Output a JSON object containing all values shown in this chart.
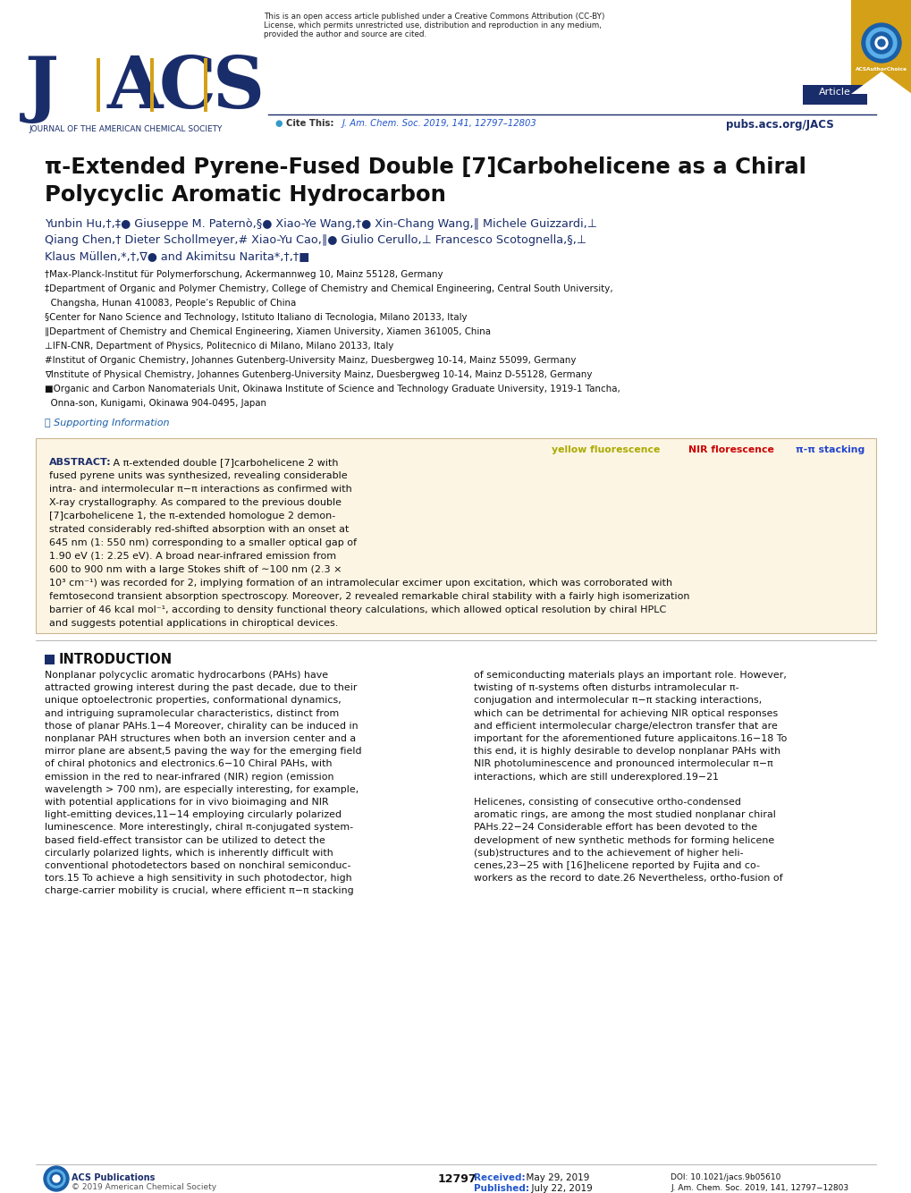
{
  "page_bg": "#ffffff",
  "navy": "#1a2d6b",
  "gold": "#d4a017",
  "blue_link": "#2255cc",
  "dark_text": "#111111",
  "gray_text": "#444444",
  "abstract_bg": "#fdf5e4",
  "abstract_border": "#c8b890",
  "red_label": "#cc0000",
  "yellow_label": "#aaaa00",
  "blue_label": "#2244cc",
  "green_dot": "#88bb00",
  "teal_dot": "#22aaaa",
  "header_line1": "This is an open access article published under a Creative Commons Attribution (CC-BY)",
  "header_line2": "License, which permits unrestricted use, distribution and reproduction in any medium,",
  "header_line3": "provided the author and source are cited.",
  "cite_label": "Cite This:",
  "cite_ref": "J. Am. Chem. Soc. 2019, 141, 12797–12803",
  "pubs_url": "pubs.acs.org/JACS",
  "article_badge": "Article",
  "jacs_letters": [
    "J",
    "A",
    "C",
    "S"
  ],
  "jacs_subtitle": "JOURNAL OF THE AMERICAN CHEMICAL SOCIETY",
  "title1": "π-Extended Pyrene-Fused Double [7]Carbohelicene as a Chiral",
  "title2": "Polycyclic Aromatic Hydrocarbon",
  "author_line1": "Yunbin Hu,†,‡● Giuseppe M. Paternò,§● Xiao-Ye Wang,†● Xin-Chang Wang,∥ Michele Guizzardi,⊥",
  "author_line2": "Qiang Chen,† Dieter Schollmeyer,# Xiao-Yu Cao,∥● Giulio Cerullo,⊥ Francesco Scotognella,§,⊥",
  "author_line3": "Klaus Müllen,*,†,∇● and Akimitsu Narita*,†,†■",
  "aff1": "†Max-Planck-Institut für Polymerforschung, Ackermannweg 10, Mainz 55128, Germany",
  "aff2a": "‡Department of Organic and Polymer Chemistry, College of Chemistry and Chemical Engineering, Central South University,",
  "aff2b": "Changsha, Hunan 410083, People’s Republic of China",
  "aff3": "§Center for Nano Science and Technology, Istituto Italiano di Tecnologia, Milano 20133, Italy",
  "aff4": "∥Department of Chemistry and Chemical Engineering, Xiamen University, Xiamen 361005, China",
  "aff5": "⊥IFN-CNR, Department of Physics, Politecnico di Milano, Milano 20133, Italy",
  "aff6": "#Institut of Organic Chemistry, Johannes Gutenberg-University Mainz, Duesbergweg 10-14, Mainz 55099, Germany",
  "aff7": "∇Institute of Physical Chemistry, Johannes Gutenberg-University Mainz, Duesbergweg 10-14, Mainz D-55128, Germany",
  "aff8a": "■Organic and Carbon Nanomaterials Unit, Okinawa Institute of Science and Technology Graduate University, 1919-1 Tancha,",
  "aff8b": "Onna-son, Kunigami, Okinawa 904-0495, Japan",
  "supporting": "Ⓢ Supporting Information",
  "abs_label": "ABSTRACT:",
  "abs_body": "A π-extended double [7]carbohelicene 2 with fused pyrene units was synthesized, revealing considerable intra- and intermolecular π−π interactions as confirmed with X-ray crystallography. As compared to the previous double [7]carbohelicene 1, the π-extended homologue 2 demonstrated considerably red-shifted absorption with an onset at 645 nm (1: 550 nm) corresponding to a smaller optical gap of 1.90 eV (1: 2.25 eV). A broad near-infrared emission from 600 to 900 nm with a large Stokes shift of ∼100 nm (2.3 × 10³ cm⁻¹) was recorded for 2, implying formation of an intramolecular excimer upon excitation, which was corroborated with femtosecond transient absorption spectroscopy. Moreover, 2 revealed remarkable chiral stability with a fairly high isomerization barrier of 46 kcal mol⁻¹, according to density functional theory calculations, which allowed optical resolution by chiral HPLC and suggests potential applications in chiroptical devices.",
  "intro_head": "INTRODUCTION",
  "intro_col1_lines": [
    "Nonplanar polycyclic aromatic hydrocarbons (PAHs) have",
    "attracted growing interest during the past decade, due to their",
    "unique optoelectronic properties, conformational dynamics,",
    "and intriguing supramolecular characteristics, distinct from",
    "those of planar PAHs.1−4 Moreover, chirality can be induced in",
    "nonplanar PAH structures when both an inversion center and a",
    "mirror plane are absent,5 paving the way for the emerging field",
    "of chiral photonics and electronics.6−10 Chiral PAHs, with",
    "emission in the red to near-infrared (NIR) region (emission",
    "wavelength > 700 nm), are especially interesting, for example,",
    "with potential applications for in vivo bioimaging and NIR",
    "light-emitting devices,11−14 employing circularly polarized",
    "luminescence. More interestingly, chiral π-conjugated system-",
    "based field-effect transistor can be utilized to detect the",
    "circularly polarized lights, which is inherently difficult with",
    "conventional photodetectors based on nonchiral semiconduc-",
    "tors.15 To achieve a high sensitivity in such photodector, high",
    "charge-carrier mobility is crucial, where efficient π−π stacking"
  ],
  "intro_col2_lines": [
    "of semiconducting materials plays an important role. However,",
    "twisting of π-systems often disturbs intramolecular π-",
    "conjugation and intermolecular π−π stacking interactions,",
    "which can be detrimental for achieving NIR optical responses",
    "and efficient intermolecular charge/electron transfer that are",
    "important for the aforementioned future applicaitons.16−18 To",
    "this end, it is highly desirable to develop nonplanar PAHs with",
    "NIR photoluminescence and pronounced intermolecular π−π",
    "interactions, which are still underexplored.19−21",
    "",
    "Helicenes, consisting of consecutive ortho-condensed",
    "aromatic rings, are among the most studied nonplanar chiral",
    "PAHs.22−24 Considerable effort has been devoted to the",
    "development of new synthetic methods for forming helicene",
    "(sub)structures and to the achievement of higher heli-",
    "cenes,23−25 with [16]helicene reported by Fujita and co-",
    "workers as the record to date.26 Nevertheless, ortho-fusion of"
  ],
  "received_label": "Received:",
  "received_date": "  May 29, 2019",
  "published_label": "Published:",
  "published_date": "  July 22, 2019",
  "doi": "DOI: 10.1021/jacs.9b05610",
  "journal_footer": "J. Am. Chem. Soc. 2019, 141, 12797−12803",
  "page_num": "12797",
  "copyright": "© 2019 American Chemical Society"
}
